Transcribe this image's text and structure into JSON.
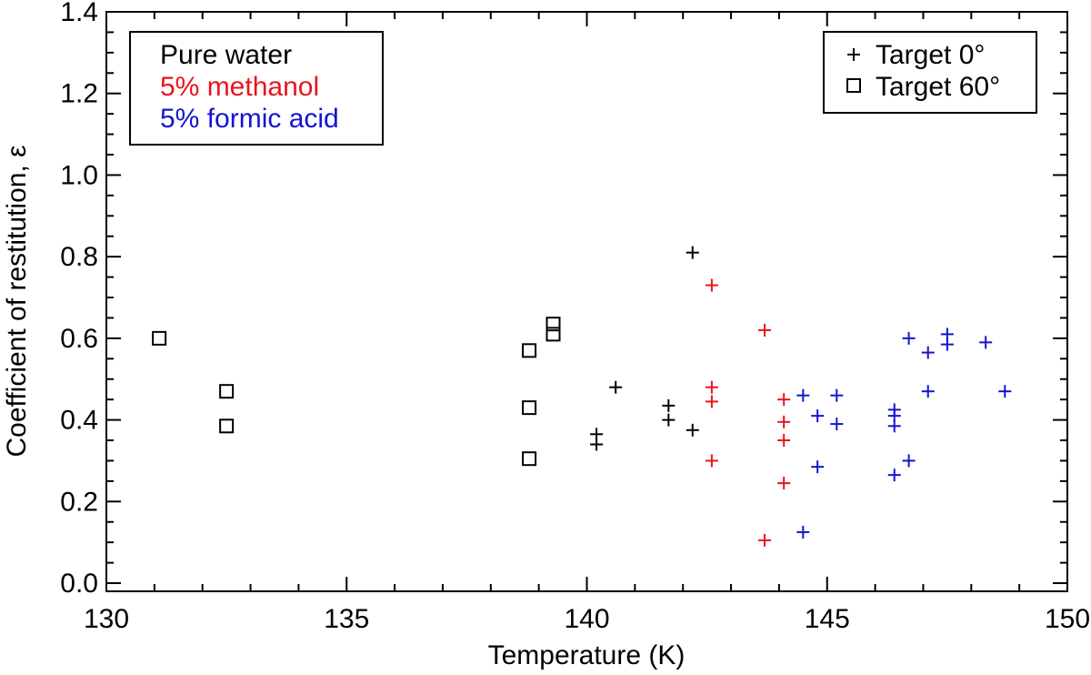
{
  "chart_data": {
    "type": "scatter",
    "title": "",
    "xlabel": "Temperature (K)",
    "ylabel": "Coefficient of restitution, ε",
    "xlim": [
      130,
      150
    ],
    "ylim": [
      -0.02,
      1.4
    ],
    "xticks": [
      130,
      135,
      140,
      145,
      150
    ],
    "yticks": [
      0.0,
      0.2,
      0.4,
      0.6,
      0.8,
      1.0,
      1.2,
      1.4
    ],
    "ytick_labels": [
      "0.0",
      "0.2",
      "0.4",
      "0.6",
      "0.8",
      "1.0",
      "1.2",
      "1.4"
    ],
    "color_legend": [
      {
        "label": "Pure water",
        "color": "#000000"
      },
      {
        "label": "5% methanol",
        "color": "#e8141c"
      },
      {
        "label": "5% formic acid",
        "color": "#1414d2"
      }
    ],
    "marker_legend": [
      {
        "label": "Target 0°",
        "marker": "plus"
      },
      {
        "label": "Target 60°",
        "marker": "square"
      }
    ],
    "series": [
      {
        "name": "Pure water, Target 60°",
        "color": "#000000",
        "marker": "square",
        "points": [
          [
            131.1,
            0.6
          ],
          [
            132.5,
            0.47
          ],
          [
            132.5,
            0.385
          ],
          [
            138.8,
            0.57
          ],
          [
            138.8,
            0.43
          ],
          [
            138.8,
            0.305
          ],
          [
            139.3,
            0.635
          ],
          [
            139.3,
            0.61
          ]
        ]
      },
      {
        "name": "Pure water, Target 0°",
        "color": "#000000",
        "marker": "plus",
        "points": [
          [
            142.2,
            0.81
          ],
          [
            140.6,
            0.48
          ],
          [
            140.2,
            0.365
          ],
          [
            140.2,
            0.34
          ],
          [
            141.7,
            0.435
          ],
          [
            141.7,
            0.4
          ],
          [
            142.2,
            0.375
          ]
        ]
      },
      {
        "name": "5% methanol, Target 0°",
        "color": "#e8141c",
        "marker": "plus",
        "points": [
          [
            142.6,
            0.73
          ],
          [
            143.7,
            0.62
          ],
          [
            142.6,
            0.48
          ],
          [
            142.6,
            0.445
          ],
          [
            144.1,
            0.45
          ],
          [
            144.1,
            0.395
          ],
          [
            144.1,
            0.35
          ],
          [
            142.6,
            0.3
          ],
          [
            144.1,
            0.245
          ],
          [
            143.7,
            0.105
          ]
        ]
      },
      {
        "name": "5% formic acid, Target 0°",
        "color": "#1414d2",
        "marker": "plus",
        "points": [
          [
            144.5,
            0.46
          ],
          [
            145.2,
            0.46
          ],
          [
            144.8,
            0.41
          ],
          [
            145.2,
            0.39
          ],
          [
            144.8,
            0.285
          ],
          [
            144.5,
            0.125
          ],
          [
            146.4,
            0.425
          ],
          [
            146.4,
            0.41
          ],
          [
            146.4,
            0.385
          ],
          [
            146.4,
            0.265
          ],
          [
            146.7,
            0.3
          ],
          [
            146.7,
            0.6
          ],
          [
            147.1,
            0.565
          ],
          [
            147.1,
            0.47
          ],
          [
            147.5,
            0.61
          ],
          [
            147.5,
            0.585
          ],
          [
            148.3,
            0.59
          ],
          [
            148.7,
            0.47
          ]
        ]
      }
    ]
  }
}
